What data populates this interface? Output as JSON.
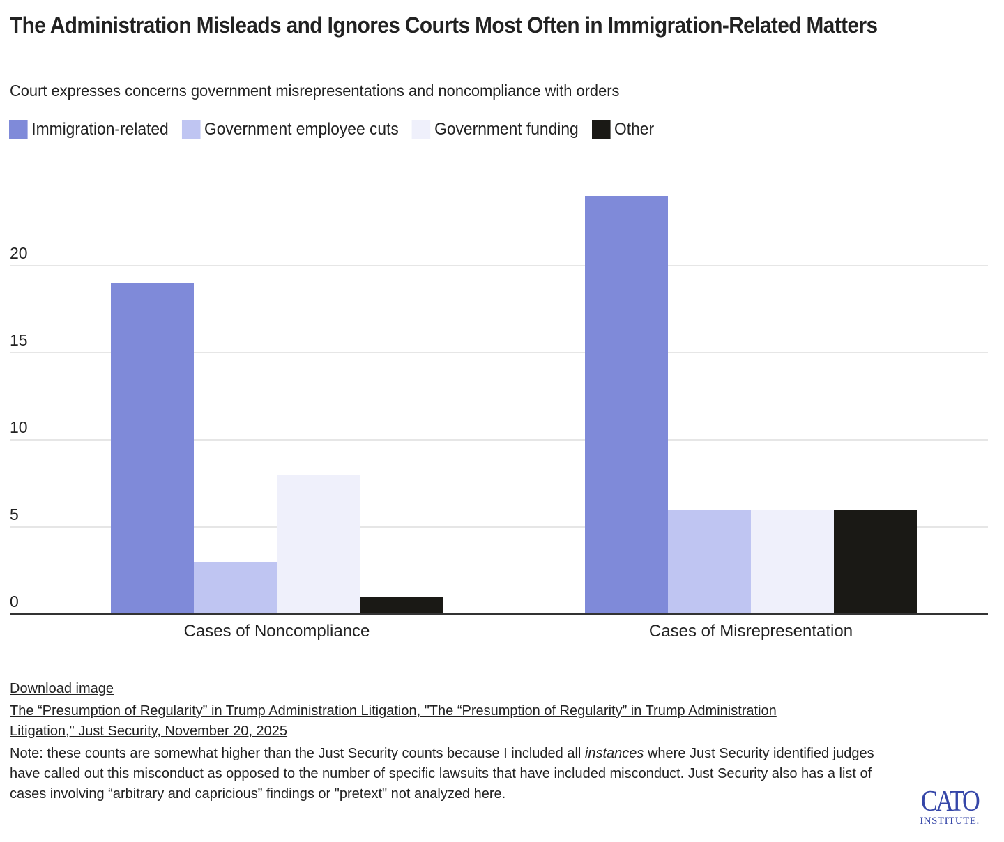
{
  "header": {
    "title": "The Administration Misleads and Ignores Courts Most Often in Immigration-Related Matters",
    "subtitle": "Court expresses concerns government misrepresentations and noncompliance with orders"
  },
  "legend": [
    {
      "label": "Immigration-related",
      "color": "#7f8ad9"
    },
    {
      "label": "Government employee cuts",
      "color": "#bfc5f2"
    },
    {
      "label": "Government funding",
      "color": "#eff0fb"
    },
    {
      "label": "Other",
      "color": "#1a1915"
    }
  ],
  "chart_data": {
    "type": "bar",
    "title": "The Administration Misleads and Ignores Courts Most Often in Immigration-Related Matters",
    "subtitle": "Court expresses concerns government misrepresentations and noncompliance with orders",
    "categories": [
      "Cases of Noncompliance",
      "Cases of Misrepresentation"
    ],
    "series": [
      {
        "name": "Immigration-related",
        "color": "#7f8ad9",
        "values": [
          19,
          24
        ]
      },
      {
        "name": "Government employee cuts",
        "color": "#bfc5f2",
        "values": [
          3,
          6
        ]
      },
      {
        "name": "Government funding",
        "color": "#eff0fb",
        "values": [
          8,
          6
        ]
      },
      {
        "name": "Other",
        "color": "#1a1915",
        "values": [
          1,
          6
        ]
      }
    ],
    "xlabel": "",
    "ylabel": "",
    "ylim": [
      0,
      25
    ],
    "yticks": [
      0,
      5,
      10,
      15,
      20
    ],
    "grid": true,
    "legend_position": "top-left"
  },
  "footer": {
    "download_label": "Download image",
    "source_text": "The “Presumption of Regularity” in Trump Administration Litigation, \"The “Presumption of Regularity” in Trump Administration Litigation,\" Just Security, November 20, 2025",
    "note_before": "Note: these counts are somewhat higher than the Just Security counts because I included all ",
    "note_italic": "instances",
    "note_after": " where Just Security identified judges have called out this misconduct as opposed to the number of specific lawsuits that have included misconduct. Just Security also has a list of cases involving “arbitrary and capricious” findings or \"pretext\" not analyzed here."
  },
  "logo": {
    "main": "CATO",
    "sub": "INSTITUTE.",
    "color": "#3546a8"
  }
}
